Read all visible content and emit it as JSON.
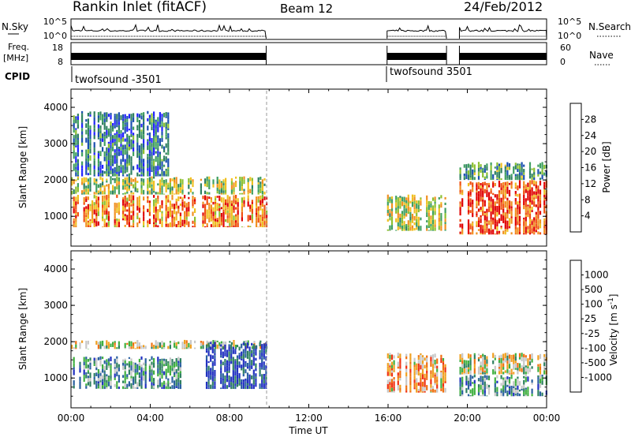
{
  "header": {
    "station": "Rankin Inlet (fitACF)",
    "beam": "Beam 12",
    "date": "24/Feb/2012"
  },
  "nsky_panel": {
    "left_label": "N.Sky",
    "right_label": "N.Search",
    "left_ticks": [
      "10^5",
      "10^0"
    ],
    "right_ticks": [
      "10^5",
      "10^0"
    ],
    "segments_hours": [
      [
        0.0,
        9.85
      ],
      [
        15.95,
        18.95
      ],
      [
        19.6,
        24.0
      ]
    ]
  },
  "freq_panel": {
    "left_label_1": "Freq.",
    "left_label_2": "[MHz]",
    "right_label": "Nave",
    "left_ticks": [
      "18",
      "8"
    ],
    "right_ticks": [
      "60",
      "0"
    ]
  },
  "cpid_panel": {
    "label": "CPID",
    "entries": [
      {
        "text": "twofsound -3501",
        "start_hour": 0.0
      },
      {
        "text": "twofsound 3501",
        "start_hour": 15.95
      }
    ]
  },
  "chart_data": [
    {
      "type": "heatmap",
      "panel": "power",
      "xlabel": "",
      "ylabel": "Slant Range [km]",
      "xlim": [
        0,
        24
      ],
      "ylim": [
        180,
        4500
      ],
      "y_ticks": [
        "1000",
        "2000",
        "3000",
        "4000"
      ],
      "colorbar": {
        "label": "Power [dB]",
        "tick_labels": [
          "4",
          "8",
          "12",
          "16",
          "20",
          "24",
          "28"
        ],
        "range": [
          0,
          32
        ],
        "colors": [
          "#2222ff",
          "#1a50b0",
          "#2e8060",
          "#40a060",
          "#8cc030",
          "#f0c020",
          "#f09020",
          "#f05010",
          "#e00000"
        ]
      },
      "echo_regions": [
        {
          "x": [
            0.0,
            9.85
          ],
          "y": [
            700,
            1600
          ],
          "level": 0.75
        },
        {
          "x": [
            0.0,
            9.85
          ],
          "y": [
            1600,
            2100
          ],
          "level": 0.5
        },
        {
          "x": [
            0.0,
            5.0
          ],
          "y": [
            2100,
            3900
          ],
          "level": 0.25
        },
        {
          "x": [
            15.95,
            18.95
          ],
          "y": [
            600,
            1600
          ],
          "level": 0.55
        },
        {
          "x": [
            19.6,
            24.0
          ],
          "y": [
            500,
            2000
          ],
          "level": 0.85
        },
        {
          "x": [
            19.6,
            24.0
          ],
          "y": [
            2000,
            2500
          ],
          "level": 0.35
        }
      ]
    },
    {
      "type": "heatmap",
      "panel": "velocity",
      "xlabel": "Time UT",
      "ylabel": "Slant Range [km]",
      "xlim": [
        0,
        24
      ],
      "ylim": [
        180,
        4500
      ],
      "x_ticks": [
        "00:00",
        "04:00",
        "08:00",
        "12:00",
        "16:00",
        "20:00",
        "00:00"
      ],
      "y_ticks": [
        "1000",
        "2000",
        "3000",
        "4000"
      ],
      "colorbar": {
        "label": "Velocity [m s^-1]",
        "tick_labels": [
          "1000",
          "500",
          "100",
          "25",
          "-25",
          "-100",
          "-500",
          "-1000"
        ],
        "colors": [
          "#2030c0",
          "#2a60a0",
          "#2e8060",
          "#40b040",
          "#c8c8c8",
          "#f0a020",
          "#f07010",
          "#f03010",
          "#e00000"
        ]
      },
      "echo_regions": [
        {
          "x": [
            0.0,
            5.5
          ],
          "y": [
            700,
            1600
          ],
          "level": 0.3
        },
        {
          "x": [
            0.0,
            9.85
          ],
          "y": [
            1800,
            2050
          ],
          "level": 0.5
        },
        {
          "x": [
            6.8,
            9.85
          ],
          "y": [
            700,
            2000
          ],
          "level": 0.1
        },
        {
          "x": [
            15.95,
            18.95
          ],
          "y": [
            600,
            1700
          ],
          "level": 0.65
        },
        {
          "x": [
            19.6,
            24.0
          ],
          "y": [
            500,
            1100
          ],
          "level": 0.3
        },
        {
          "x": [
            19.6,
            24.0
          ],
          "y": [
            1100,
            1700
          ],
          "level": 0.5
        }
      ]
    }
  ]
}
